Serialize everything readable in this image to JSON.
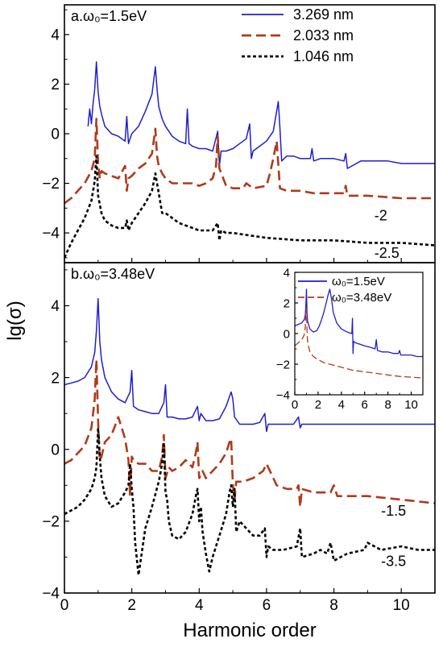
{
  "figure": {
    "xlabel": "Harmonic order",
    "ylabel": "lg(σ)"
  },
  "chart_data": [
    {
      "type": "line",
      "panel": "a",
      "panel_label": "a.ω₀=1.5eV",
      "xlim": [
        0,
        11
      ],
      "ylim": [
        -5.2,
        5.2
      ],
      "xticks": [
        0,
        2,
        4,
        6,
        8,
        10
      ],
      "yticks": [
        -4,
        -2,
        0,
        2,
        4
      ],
      "legend_position": "top-right",
      "series": [
        {
          "name": "3.269 nm",
          "color": "#1f1fcf",
          "dash": "solid",
          "x": [
            0.7,
            0.75,
            0.8,
            0.85,
            0.9,
            0.95,
            1.0,
            1.05,
            1.1,
            1.2,
            1.4,
            1.6,
            1.8,
            1.85,
            1.9,
            1.95,
            2.0,
            2.2,
            2.4,
            2.6,
            2.7,
            2.75,
            2.8,
            2.9,
            3.0,
            3.2,
            3.4,
            3.6,
            3.65,
            3.7,
            3.8,
            4.0,
            4.2,
            4.4,
            4.55,
            4.6,
            4.65,
            4.8,
            5.0,
            5.2,
            5.4,
            5.5,
            5.55,
            5.6,
            5.8,
            6.0,
            6.2,
            6.35,
            6.4,
            6.45,
            6.6,
            6.8,
            7.0,
            7.3,
            7.35,
            7.4,
            7.6,
            8.0,
            8.3,
            8.35,
            8.4,
            8.8,
            9.2,
            9.6,
            10.0,
            10.5,
            11.0
          ],
          "y": [
            0.3,
            1.0,
            0.4,
            1.2,
            1.8,
            2.9,
            1.7,
            1.1,
            0.8,
            0.3,
            0.0,
            -0.1,
            -0.3,
            0.7,
            -0.4,
            -0.2,
            0.0,
            0.3,
            0.9,
            1.6,
            2.7,
            1.8,
            1.1,
            0.6,
            0.3,
            -0.1,
            -0.3,
            -0.4,
            1.0,
            -0.4,
            -0.5,
            -0.6,
            -0.6,
            -0.7,
            0.1,
            -1.3,
            -0.7,
            -0.7,
            -0.6,
            -0.4,
            -0.2,
            0.4,
            -1.0,
            -0.7,
            -0.5,
            -0.3,
            0.1,
            1.3,
            0.2,
            -1.1,
            -0.9,
            -0.9,
            -1.0,
            -1.0,
            -0.6,
            -1.1,
            -1.0,
            -1.0,
            -1.1,
            -0.8,
            -1.4,
            -1.1,
            -1.1,
            -1.1,
            -1.2,
            -1.2,
            -1.2
          ]
        },
        {
          "name": "2.033 nm",
          "color": "#b03a1a",
          "dash": "12,6",
          "x": [
            0.0,
            0.2,
            0.4,
            0.6,
            0.8,
            0.9,
            0.95,
            1.0,
            1.05,
            1.1,
            1.2,
            1.4,
            1.6,
            1.8,
            1.85,
            1.9,
            2.0,
            2.2,
            2.4,
            2.6,
            2.7,
            2.75,
            2.8,
            2.9,
            3.0,
            3.2,
            3.4,
            3.6,
            3.8,
            4.0,
            4.2,
            4.4,
            4.5,
            4.55,
            4.6,
            4.8,
            5.0,
            5.3,
            5.4,
            5.6,
            6.0,
            6.1,
            6.2,
            6.3,
            6.4,
            6.6,
            7.0,
            7.4,
            8.0,
            8.3,
            8.35,
            8.4,
            9.0,
            10.0,
            11.0
          ],
          "y": [
            -2.8,
            -2.6,
            -2.3,
            -2.0,
            -1.5,
            -1.0,
            0.6,
            -1.2,
            -1.8,
            -1.5,
            -1.6,
            -1.7,
            -1.8,
            -1.3,
            -2.3,
            -1.8,
            -1.7,
            -1.4,
            -1.2,
            -0.8,
            0.2,
            -0.9,
            -1.3,
            -1.6,
            -1.8,
            -2.0,
            -2.0,
            -2.0,
            -2.0,
            -2.1,
            -2.0,
            -1.8,
            -1.3,
            -0.1,
            -1.4,
            -2.1,
            -2.2,
            -2.2,
            -2.0,
            -2.2,
            -2.1,
            -1.6,
            -1.0,
            -0.3,
            -2.2,
            -2.3,
            -2.3,
            -2.4,
            -2.4,
            -2.4,
            -2.1,
            -2.5,
            -2.5,
            -2.6,
            -2.6
          ]
        },
        {
          "name": "1.046 nm",
          "color": "#000000",
          "dash": "4,3",
          "x": [
            0.0,
            0.2,
            0.4,
            0.6,
            0.8,
            0.9,
            0.95,
            1.0,
            1.1,
            1.2,
            1.4,
            1.6,
            1.8,
            1.85,
            1.9,
            2.0,
            2.2,
            2.4,
            2.6,
            2.7,
            2.75,
            2.8,
            2.9,
            3.0,
            3.2,
            3.4,
            3.6,
            3.8,
            4.0,
            4.2,
            4.4,
            4.55,
            4.6,
            4.65,
            4.8,
            5.0,
            5.5,
            6.0,
            7.0,
            8.0,
            9.0,
            10.0,
            11.0
          ],
          "y": [
            -5.0,
            -4.4,
            -3.9,
            -3.4,
            -2.7,
            -1.9,
            -0.9,
            -2.5,
            -3.2,
            -3.5,
            -3.7,
            -3.8,
            -3.8,
            -3.5,
            -3.9,
            -3.6,
            -3.2,
            -2.8,
            -2.3,
            -1.6,
            -2.0,
            -2.4,
            -3.2,
            -3.2,
            -3.4,
            -3.6,
            -3.7,
            -3.8,
            -3.9,
            -3.9,
            -3.9,
            -3.6,
            -4.3,
            -3.9,
            -4.0,
            -4.0,
            -4.1,
            -4.2,
            -4.3,
            -4.3,
            -4.4,
            -4.4,
            -4.5
          ]
        }
      ],
      "annotations": [
        {
          "text": "-2",
          "x": 9.2,
          "y": -3.5
        },
        {
          "text": "-2.5",
          "x": 9.2,
          "y": -5.0
        }
      ]
    },
    {
      "type": "line",
      "panel": "b",
      "panel_label": "b.ω₀=3.48eV",
      "xlim": [
        0,
        11
      ],
      "ylim": [
        -4,
        5.2
      ],
      "xticks": [
        0,
        2,
        4,
        6,
        8,
        10
      ],
      "yticks": [
        -4,
        -2,
        0,
        2,
        4
      ],
      "series": [
        {
          "name": "3.269 nm",
          "color": "#1f1fcf",
          "dash": "solid",
          "x": [
            0.0,
            0.2,
            0.4,
            0.6,
            0.8,
            0.9,
            0.95,
            1.0,
            1.05,
            1.1,
            1.2,
            1.4,
            1.6,
            1.8,
            1.95,
            2.0,
            2.05,
            2.2,
            2.4,
            2.6,
            2.8,
            2.95,
            3.0,
            3.05,
            3.2,
            3.4,
            3.6,
            3.8,
            3.95,
            4.0,
            4.05,
            4.2,
            4.4,
            4.6,
            4.8,
            4.95,
            5.0,
            5.05,
            5.2,
            5.4,
            5.6,
            5.8,
            5.95,
            6.0,
            6.05,
            6.4,
            6.8,
            6.95,
            7.0,
            7.05,
            7.5,
            8.0,
            9.0,
            10.0,
            11.0
          ],
          "y": [
            1.8,
            1.85,
            1.9,
            2.0,
            2.3,
            2.7,
            3.3,
            4.2,
            3.0,
            2.5,
            2.0,
            1.6,
            1.4,
            1.3,
            1.6,
            2.2,
            1.2,
            1.1,
            1.05,
            1.0,
            1.0,
            1.3,
            1.8,
            0.9,
            0.9,
            0.85,
            0.85,
            0.9,
            1.2,
            0.8,
            1.0,
            0.8,
            0.8,
            0.85,
            1.2,
            1.6,
            1.4,
            0.9,
            0.7,
            0.7,
            0.7,
            0.75,
            1.0,
            0.5,
            0.7,
            0.7,
            0.7,
            0.9,
            0.6,
            0.7,
            0.7,
            0.7,
            0.7,
            0.7,
            0.7
          ]
        },
        {
          "name": "2.033 nm",
          "color": "#b03a1a",
          "dash": "12,6",
          "x": [
            0.0,
            0.2,
            0.4,
            0.6,
            0.8,
            0.9,
            0.95,
            1.0,
            1.05,
            1.1,
            1.2,
            1.4,
            1.6,
            1.8,
            1.9,
            1.95,
            2.0,
            2.05,
            2.2,
            2.4,
            2.6,
            2.8,
            2.9,
            2.95,
            3.0,
            3.1,
            3.2,
            3.4,
            3.6,
            3.8,
            3.9,
            3.95,
            4.0,
            4.1,
            4.2,
            4.4,
            4.6,
            4.8,
            4.9,
            4.95,
            5.0,
            5.05,
            5.1,
            5.3,
            5.6,
            5.9,
            6.0,
            6.1,
            6.3,
            6.6,
            6.9,
            6.95,
            7.0,
            7.05,
            7.4,
            7.9,
            8.0,
            8.1,
            9.0,
            10.0,
            11.0
          ],
          "y": [
            -0.4,
            -0.3,
            -0.1,
            0.1,
            0.6,
            1.4,
            2.5,
            0.8,
            -0.3,
            -0.2,
            0.2,
            0.4,
            0.9,
            0.3,
            -0.3,
            -1.3,
            -0.2,
            -0.3,
            -0.4,
            -0.4,
            -0.6,
            -0.6,
            -0.2,
            0.4,
            -0.8,
            -0.5,
            -0.6,
            -0.5,
            -0.3,
            -0.5,
            -0.1,
            0.2,
            -0.8,
            -0.6,
            -0.8,
            -0.6,
            -0.4,
            -0.1,
            0.2,
            0.3,
            -1.0,
            -1.4,
            -0.9,
            -0.9,
            -0.8,
            -0.6,
            -0.4,
            -0.6,
            -1.0,
            -1.1,
            -1.1,
            -1.0,
            -1.6,
            -1.1,
            -1.2,
            -1.2,
            -1.0,
            -1.3,
            -1.3,
            -1.4,
            -1.5
          ]
        },
        {
          "name": "1.046 nm",
          "color": "#000000",
          "dash": "4,3",
          "x": [
            0.0,
            0.2,
            0.4,
            0.6,
            0.8,
            0.9,
            0.95,
            1.0,
            1.05,
            1.1,
            1.2,
            1.4,
            1.6,
            1.8,
            1.9,
            1.95,
            2.0,
            2.05,
            2.1,
            2.2,
            2.4,
            2.6,
            2.8,
            2.9,
            2.95,
            3.0,
            3.05,
            3.1,
            3.2,
            3.4,
            3.6,
            3.8,
            3.9,
            3.95,
            4.0,
            4.05,
            4.1,
            4.2,
            4.3,
            4.4,
            4.6,
            4.8,
            4.9,
            4.95,
            5.0,
            5.05,
            5.1,
            5.2,
            5.4,
            5.6,
            5.8,
            5.95,
            6.0,
            6.05,
            6.2,
            6.5,
            6.9,
            7.0,
            7.05,
            7.4,
            7.6,
            7.8,
            7.9,
            8.0,
            8.4,
            8.9,
            9.0,
            9.4,
            10.0,
            10.5,
            11.0
          ],
          "y": [
            -1.8,
            -1.7,
            -1.6,
            -1.4,
            -1.1,
            -0.8,
            -0.5,
            0.6,
            -0.2,
            -0.8,
            -1.3,
            -1.6,
            -1.5,
            -1.2,
            -1.0,
            -0.4,
            -1.1,
            -1.6,
            -2.6,
            -3.5,
            -2.2,
            -1.6,
            -0.9,
            -0.4,
            0.2,
            -1.2,
            -1.4,
            -2.0,
            -2.4,
            -2.5,
            -2.3,
            -1.8,
            -1.3,
            -1.1,
            -2.0,
            -1.6,
            -2.3,
            -2.9,
            -3.4,
            -3.0,
            -2.4,
            -1.8,
            -1.2,
            -1.0,
            -1.6,
            -1.1,
            -2.3,
            -2.0,
            -2.2,
            -2.4,
            -2.4,
            -2.2,
            -3.0,
            -2.7,
            -2.8,
            -2.8,
            -2.7,
            -2.2,
            -3.0,
            -2.9,
            -2.8,
            -2.9,
            -2.6,
            -3.1,
            -2.9,
            -2.8,
            -2.6,
            -2.8,
            -2.7,
            -2.8,
            -2.8
          ]
        }
      ],
      "annotations": [
        {
          "text": "-1.5",
          "x": 9.4,
          "y": -1.85
        },
        {
          "text": "-3.5",
          "x": 9.4,
          "y": -3.25
        }
      ]
    },
    {
      "type": "line",
      "panel": "inset",
      "xlim": [
        0,
        11
      ],
      "ylim": [
        -4,
        4
      ],
      "xticks": [
        0,
        2,
        4,
        6,
        8,
        10
      ],
      "yticks": [
        -4,
        -2,
        0,
        2,
        4
      ],
      "legend_position": "top-left",
      "series": [
        {
          "name": "ω₀=1.5eV",
          "color": "#1f1fcf",
          "dash": "solid",
          "x": [
            0.0,
            0.3,
            0.6,
            0.8,
            0.9,
            0.95,
            1.0,
            1.05,
            1.1,
            1.3,
            1.6,
            1.9,
            2.1,
            2.3,
            2.5,
            2.7,
            2.85,
            3.0,
            3.15,
            3.3,
            3.6,
            4.0,
            4.5,
            4.9,
            4.95,
            5.0,
            5.05,
            5.2,
            5.6,
            6.0,
            6.5,
            6.9,
            7.0,
            7.1,
            7.5,
            8.0,
            8.5,
            8.9,
            9.0,
            9.1,
            9.5,
            10.0,
            10.5,
            11.0
          ],
          "y": [
            0.5,
            0.6,
            0.7,
            0.9,
            1.2,
            1.8,
            2.9,
            1.3,
            0.8,
            0.3,
            0.1,
            0.2,
            0.5,
            0.9,
            1.4,
            2.0,
            2.5,
            2.9,
            2.3,
            1.4,
            0.7,
            0.3,
            0.1,
            0.0,
            1.0,
            -1.3,
            -0.5,
            -0.6,
            -0.7,
            -0.8,
            -0.9,
            -1.0,
            -0.4,
            -1.1,
            -1.2,
            -1.2,
            -1.3,
            -1.3,
            -1.1,
            -1.4,
            -1.4,
            -1.4,
            -1.5,
            -1.5
          ]
        },
        {
          "name": "ω₀=3.48eV",
          "color": "#b03a1a",
          "dash": "8,4",
          "x": [
            0.0,
            0.3,
            0.6,
            0.8,
            0.9,
            0.95,
            1.0,
            1.05,
            1.1,
            1.3,
            1.6,
            2.0,
            2.5,
            3.0,
            4.0,
            5.0,
            6.0,
            7.0,
            8.0,
            9.0,
            10.0,
            11.0
          ],
          "y": [
            -0.8,
            -0.6,
            -0.4,
            -0.1,
            0.4,
            1.3,
            1.6,
            0.2,
            -0.6,
            -1.2,
            -1.5,
            -1.7,
            -1.9,
            -2.0,
            -2.2,
            -2.4,
            -2.5,
            -2.6,
            -2.7,
            -2.8,
            -2.85,
            -2.9
          ]
        }
      ]
    }
  ]
}
